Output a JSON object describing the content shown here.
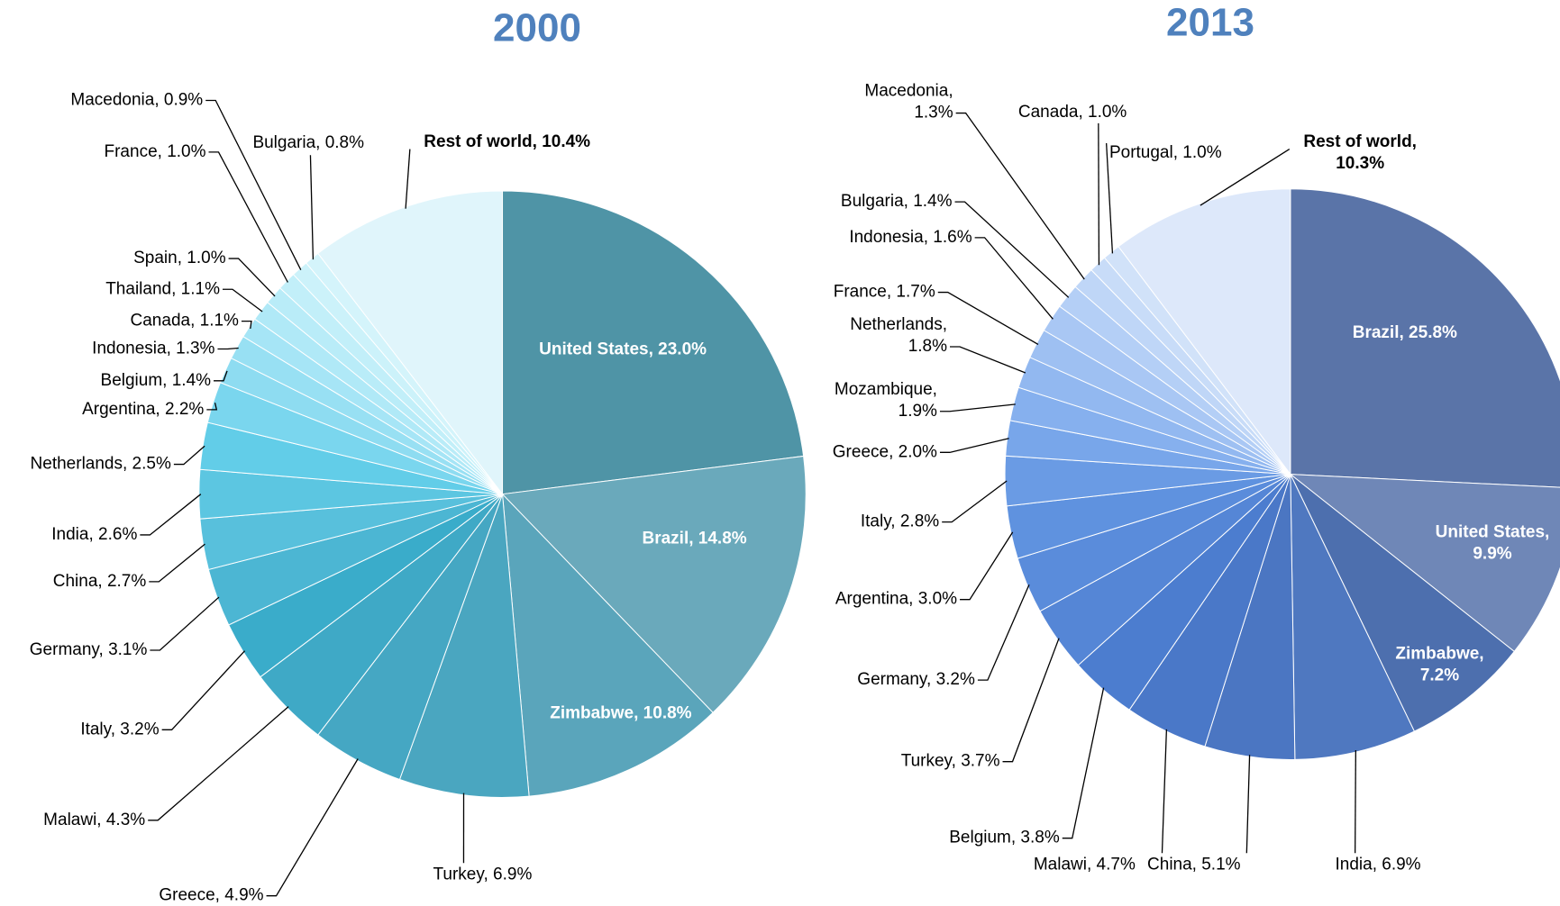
{
  "chart_data": [
    {
      "type": "pie",
      "title": "2000",
      "categories": [
        "United States",
        "Brazil",
        "Zimbabwe",
        "Turkey",
        "Greece",
        "Malawi",
        "Italy",
        "Germany",
        "China",
        "India",
        "Netherlands",
        "Argentina",
        "Belgium",
        "Indonesia",
        "Canada",
        "Thailand",
        "Spain",
        "France",
        "Macedonia",
        "Bulgaria",
        "Rest of world"
      ],
      "values": [
        23.0,
        14.8,
        10.8,
        6.9,
        4.9,
        4.3,
        3.2,
        3.1,
        2.7,
        2.6,
        2.5,
        2.2,
        1.4,
        1.3,
        1.1,
        1.1,
        1.0,
        1.0,
        0.9,
        0.8,
        10.4
      ],
      "value_labels": [
        "23.0%",
        "14.8%",
        "10.8%",
        "6.9%",
        "4.9%",
        "4.3%",
        "3.2%",
        "3.1%",
        "2.7%",
        "2.6%",
        "2.5%",
        "2.2%",
        "1.4%",
        "1.3%",
        "1.1%",
        "1.1%",
        "1.0%",
        "1.0%",
        "0.9%",
        "0.8%",
        "10.4%"
      ],
      "colors": [
        "#4f94a6",
        "#6aa9bb",
        "#5aa5bb",
        "#4aa6c0",
        "#45a7c3",
        "#3fa9c6",
        "#3aacca",
        "#4cb6d3",
        "#58c0dc",
        "#5cc6e1",
        "#62cde8",
        "#7ad6ee",
        "#8edcf1",
        "#98e0f3",
        "#a6e5f6",
        "#b0e9f7",
        "#b9ecf8",
        "#c2eff9",
        "#ccf2fa",
        "#d4f4fb",
        "#e0f5fb"
      ]
    },
    {
      "type": "pie",
      "title": "2013",
      "categories": [
        "Brazil",
        "United States",
        "Zimbabwe",
        "India",
        "China",
        "Malawi",
        "Belgium",
        "Turkey",
        "Germany",
        "Argentina",
        "Italy",
        "Greece",
        "Mozambique",
        "Netherlands",
        "France",
        "Indonesia",
        "Bulgaria",
        "Macedonia",
        "Canada",
        "Portugal",
        "Rest of world"
      ],
      "values": [
        25.8,
        9.9,
        7.2,
        6.9,
        5.1,
        4.7,
        3.8,
        3.7,
        3.2,
        3.0,
        2.8,
        2.0,
        1.9,
        1.8,
        1.7,
        1.6,
        1.4,
        1.3,
        1.0,
        1.0,
        10.3
      ],
      "value_labels": [
        "25.8%",
        "9.9%",
        "7.2%",
        "6.9%",
        "5.1%",
        "4.7%",
        "3.8%",
        "3.7%",
        "3.2%",
        "3.0%",
        "2.8%",
        "2.0%",
        "1.9%",
        "1.8%",
        "1.7%",
        "1.6%",
        "1.4%",
        "1.3%",
        "1.0%",
        "1.0%",
        "10.3%"
      ],
      "colors": [
        "#5a74a8",
        "#6f87b7",
        "#4d6fae",
        "#4f78c0",
        "#4b76c2",
        "#4a78c8",
        "#4c7dcf",
        "#5586d6",
        "#5a8cdb",
        "#5f92df",
        "#6a9be4",
        "#78a6ea",
        "#86b0ee",
        "#92b8f0",
        "#9ec0f2",
        "#a9c7f4",
        "#b4cff6",
        "#bfd6f7",
        "#c8dcf8",
        "#d1e2f9",
        "#dde8fa"
      ]
    }
  ]
}
